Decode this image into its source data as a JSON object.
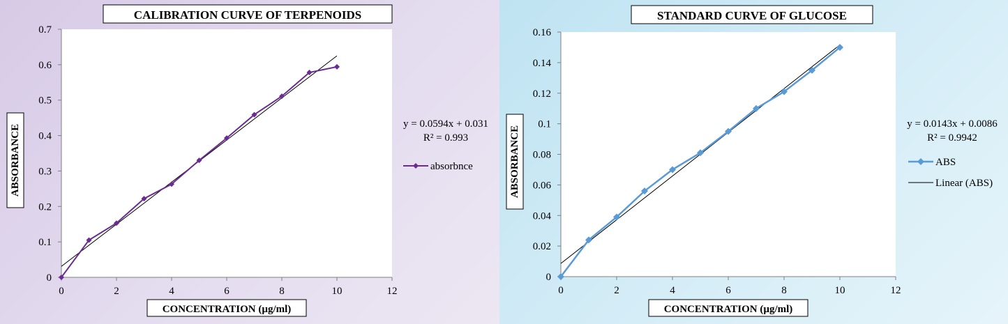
{
  "chart_data": [
    {
      "type": "line",
      "title": "CALIBRATION CURVE OF TERPENOIDS",
      "xlabel": "CONCENTRATION (µg/ml)",
      "ylabel": "ABSORBANCE",
      "xlim": [
        0,
        12
      ],
      "ylim": [
        0,
        0.7
      ],
      "xticks": [
        "0",
        "2",
        "4",
        "6",
        "8",
        "10",
        "12"
      ],
      "yticks": [
        "0",
        "0.1",
        "0.2",
        "0.3",
        "0.4",
        "0.5",
        "0.6",
        "0.7"
      ],
      "x": [
        0,
        1,
        2,
        3,
        4,
        5,
        6,
        7,
        8,
        9,
        10
      ],
      "series": [
        {
          "name": "absorbnce",
          "values": [
            0,
            0.105,
            0.153,
            0.222,
            0.263,
            0.33,
            0.393,
            0.459,
            0.511,
            0.578,
            0.594
          ],
          "color": "#6a2c91",
          "marker": "diamond"
        }
      ],
      "trendline": {
        "slope": 0.0594,
        "intercept": 0.031,
        "x_range": [
          0,
          10
        ],
        "color": "#000000"
      },
      "equation": "y = 0.0594x + 0.031",
      "r_squared": "R² = 0.993",
      "legend": {
        "position": "right",
        "entries": [
          "absorbnce"
        ]
      },
      "grid": false
    },
    {
      "type": "line",
      "title": "STANDARD CURVE OF GLUCOSE",
      "xlabel": "CONCENTRATION (µg/ml)",
      "ylabel": "ABSORBANCE",
      "xlim": [
        0,
        12
      ],
      "ylim": [
        0,
        0.16
      ],
      "xticks": [
        "0",
        "2",
        "4",
        "6",
        "8",
        "10",
        "12"
      ],
      "yticks": [
        "0",
        "0.02",
        "0.04",
        "0.06",
        "0.08",
        "0.1",
        "0.12",
        "0.14",
        "0.16"
      ],
      "x": [
        0,
        1,
        2,
        3,
        4,
        5,
        6,
        7,
        8,
        9,
        10
      ],
      "series": [
        {
          "name": "ABS",
          "values": [
            0,
            0.024,
            0.039,
            0.056,
            0.07,
            0.081,
            0.095,
            0.11,
            0.121,
            0.135,
            0.15
          ],
          "color": "#5b9bd5",
          "marker": "diamond"
        }
      ],
      "trendline": {
        "slope": 0.0143,
        "intercept": 0.0086,
        "x_range": [
          0,
          10
        ],
        "color": "#000000",
        "name": "Linear (ABS)"
      },
      "equation": "y = 0.0143x + 0.0086",
      "r_squared": "R² = 0.9942",
      "legend": {
        "position": "right",
        "entries": [
          "ABS",
          "Linear (ABS)"
        ]
      },
      "grid": false
    }
  ]
}
